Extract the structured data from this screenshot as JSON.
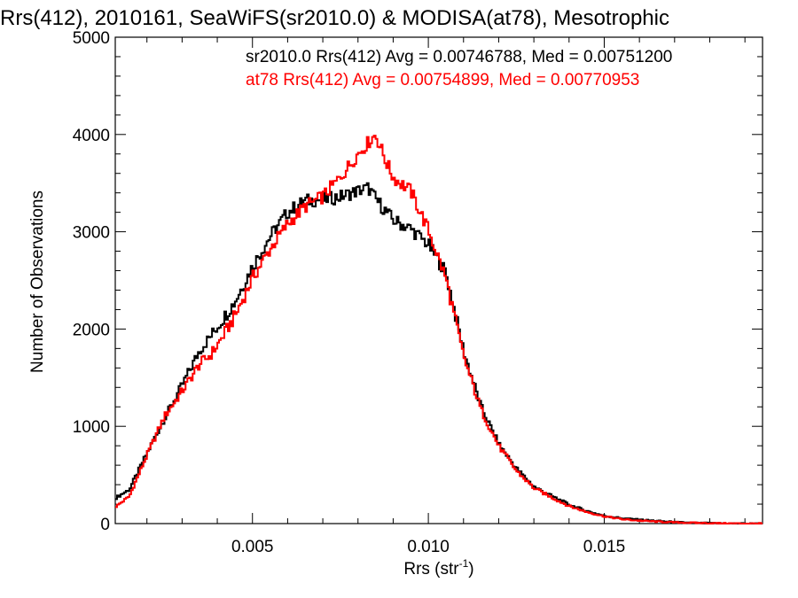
{
  "chart_data": {
    "type": "line",
    "title": "Rrs(412), 2010161, SeaWiFS(sr2010.0) & MODISA(at78), Mesotrophic",
    "xlabel_main": "Rrs (str",
    "xlabel_sup": "-1",
    "xlabel_end": ")",
    "ylabel": "Number of Observations",
    "xlim": [
      0.0011,
      0.0195
    ],
    "ylim": [
      0,
      5000
    ],
    "x_ticks": [
      0.005,
      0.01,
      0.015
    ],
    "x_tick_labels": [
      "0.005",
      "0.010",
      "0.015"
    ],
    "y_ticks": [
      0,
      1000,
      2000,
      3000,
      4000,
      5000
    ],
    "y_tick_labels": [
      "0",
      "1000",
      "2000",
      "3000",
      "4000",
      "5000"
    ],
    "grid": false,
    "series": [
      {
        "name": "sr2010.0 Rrs(412) Avg = 0.00746788, Med = 0.00751200",
        "color": "#000000",
        "step": true,
        "x": [
          0.0011,
          0.0015,
          0.002,
          0.0025,
          0.003,
          0.0035,
          0.0038,
          0.004,
          0.0045,
          0.005,
          0.0055,
          0.006,
          0.0065,
          0.007,
          0.0075,
          0.008,
          0.0083,
          0.0085,
          0.009,
          0.0095,
          0.01,
          0.0105,
          0.011,
          0.0115,
          0.012,
          0.0125,
          0.013,
          0.0135,
          0.014,
          0.0145,
          0.015,
          0.0155,
          0.016,
          0.0165,
          0.017,
          0.0175,
          0.018,
          0.0185,
          0.019,
          0.0195
        ],
        "values": [
          260,
          350,
          720,
          1080,
          1420,
          1780,
          1920,
          2020,
          2280,
          2640,
          2950,
          3200,
          3320,
          3330,
          3360,
          3420,
          3450,
          3340,
          3120,
          3030,
          2870,
          2580,
          1780,
          1200,
          820,
          570,
          380,
          285,
          195,
          130,
          80,
          55,
          40,
          28,
          15,
          8,
          4,
          2,
          1,
          0
        ]
      },
      {
        "name": "at78 Rrs(412) Avg = 0.00754899, Med = 0.00770953",
        "color": "#ff0000",
        "step": true,
        "x": [
          0.0011,
          0.0015,
          0.002,
          0.0025,
          0.003,
          0.0035,
          0.0038,
          0.004,
          0.0045,
          0.005,
          0.0055,
          0.006,
          0.0065,
          0.007,
          0.0075,
          0.008,
          0.0083,
          0.0085,
          0.0088,
          0.009,
          0.0095,
          0.01,
          0.0105,
          0.011,
          0.0115,
          0.012,
          0.0125,
          0.013,
          0.0135,
          0.014,
          0.0145,
          0.015,
          0.0155,
          0.016,
          0.0165,
          0.017,
          0.0175,
          0.018,
          0.0185,
          0.019,
          0.0195
        ],
        "values": [
          170,
          280,
          700,
          1100,
          1360,
          1640,
          1730,
          1830,
          2130,
          2520,
          2820,
          3080,
          3260,
          3360,
          3560,
          3800,
          3920,
          4000,
          3720,
          3560,
          3420,
          3020,
          2520,
          1720,
          1170,
          800,
          545,
          365,
          270,
          180,
          120,
          75,
          45,
          30,
          20,
          12,
          8,
          4,
          2,
          1,
          0
        ]
      }
    ]
  }
}
